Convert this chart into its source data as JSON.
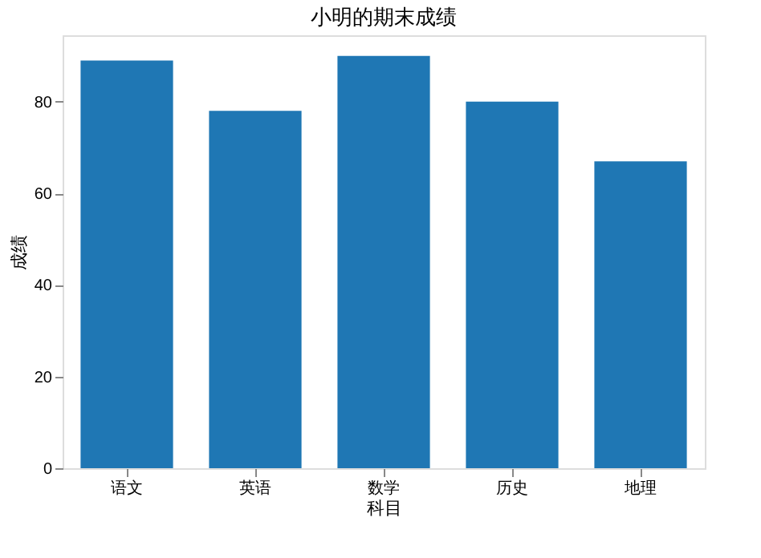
{
  "chart_data": {
    "type": "bar",
    "title": "小明的期末成绩",
    "xlabel": "科目",
    "ylabel": "成绩",
    "categories": [
      "语文",
      "英语",
      "数学",
      "历史",
      "地理"
    ],
    "values": [
      89,
      78,
      90,
      80,
      67
    ],
    "color": "#1f77b4",
    "ylim": [
      0,
      94.5
    ],
    "yticks": [
      0,
      20,
      40,
      60,
      80
    ],
    "grid": false
  }
}
